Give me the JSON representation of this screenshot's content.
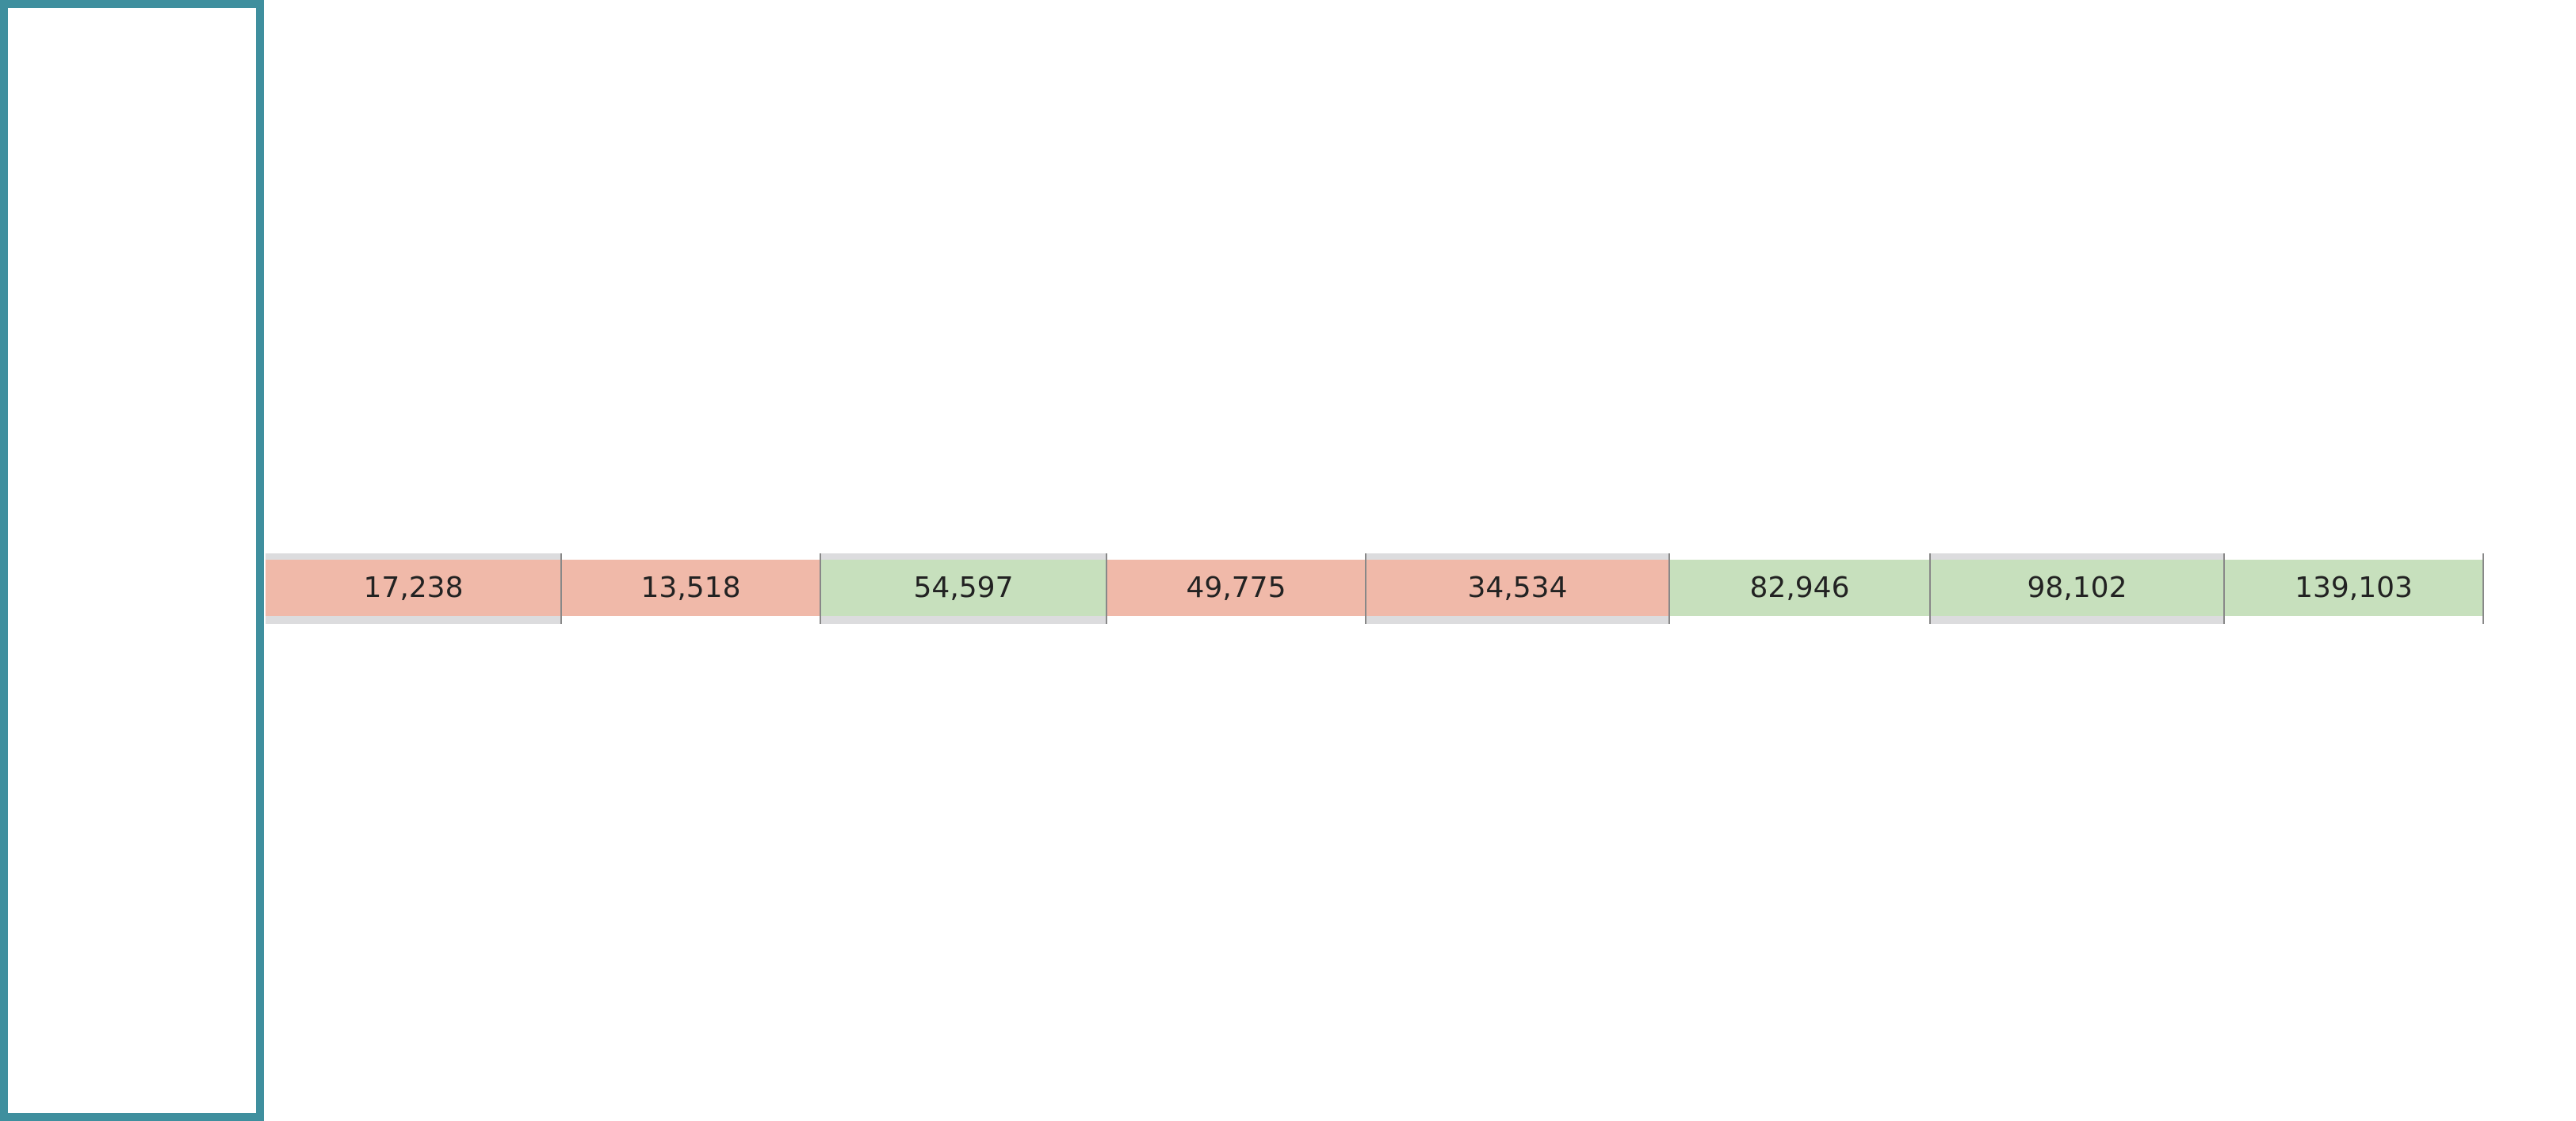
{
  "cells": [
    {
      "value": "17,238",
      "color": "#f0b9a9"
    },
    {
      "value": "13,518",
      "color": "#f0b9a9"
    },
    {
      "value": "54,597",
      "color": "#c7e0bd"
    },
    {
      "value": "49,775",
      "color": "#f0b9a9"
    },
    {
      "value": "34,534",
      "color": "#f0b9a9"
    },
    {
      "value": "82,946",
      "color": "#c7e0bd"
    },
    {
      "value": "98,102",
      "color": "#c7e0bd"
    },
    {
      "value": "139,103",
      "color": "#c7e0bd"
    }
  ]
}
